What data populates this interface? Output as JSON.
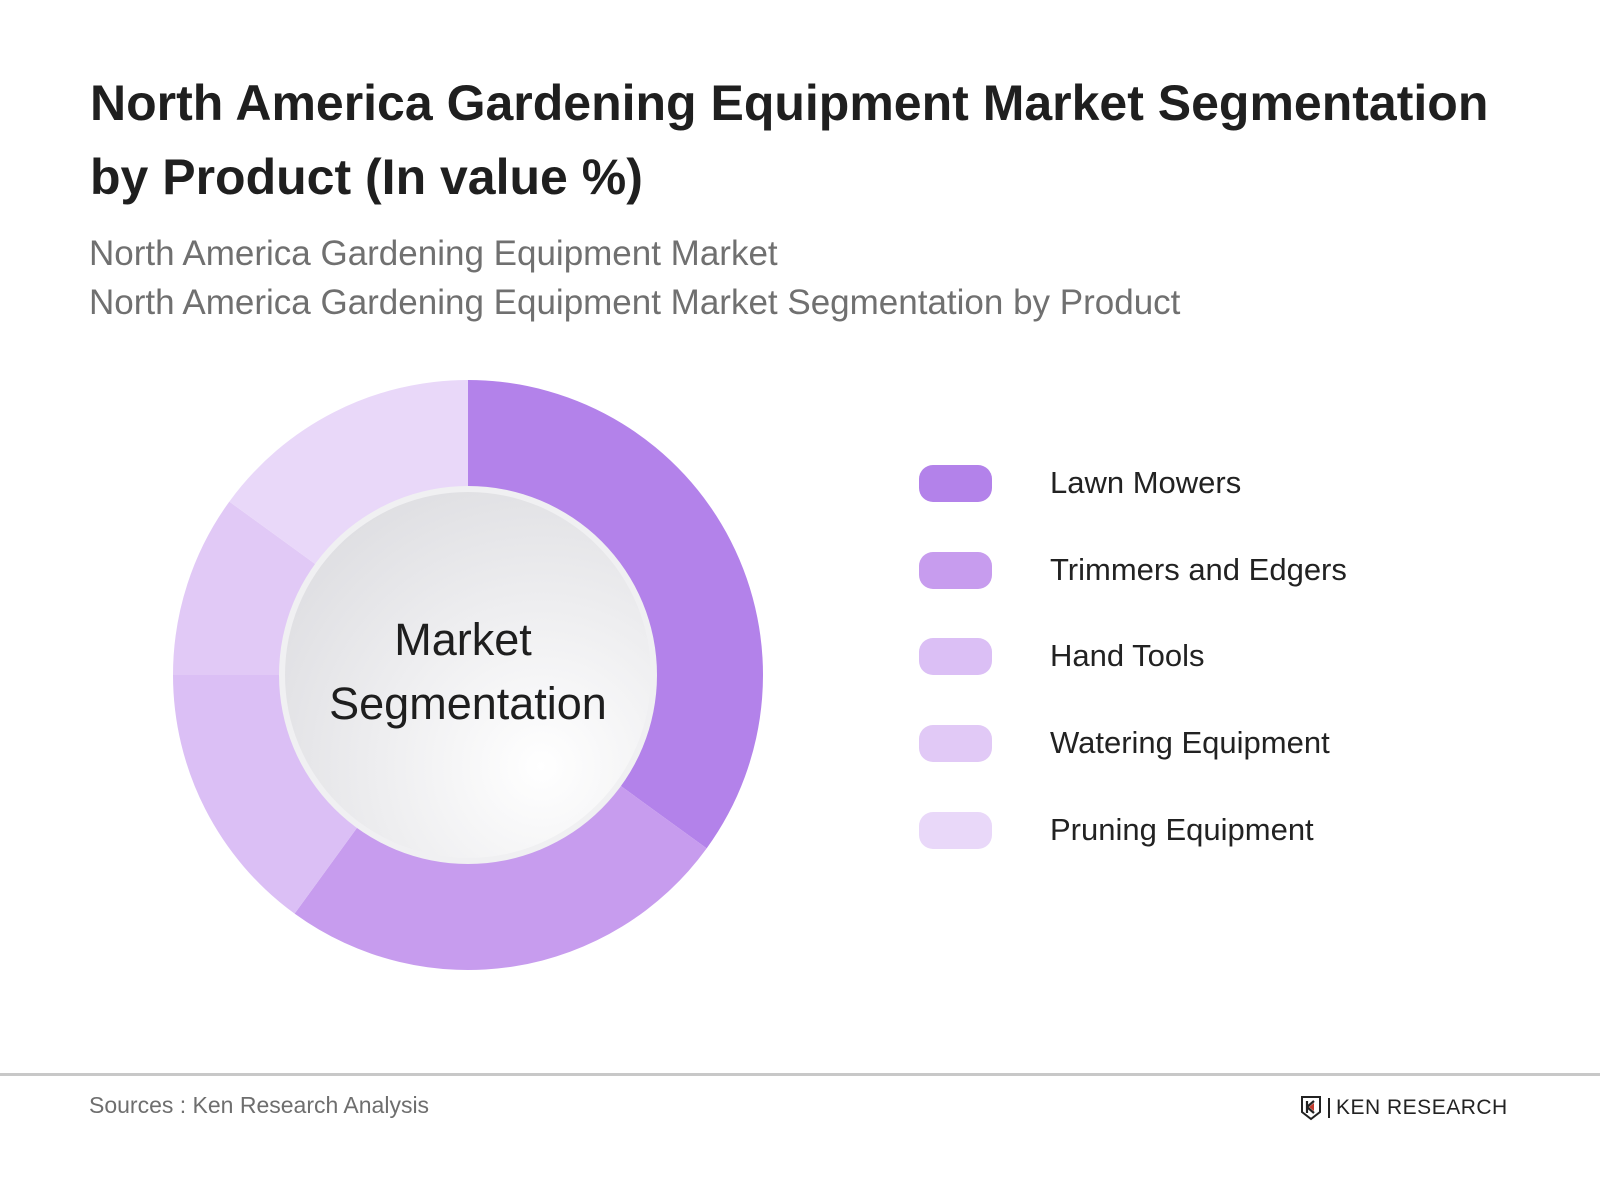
{
  "title": "North America Gardening Equipment Market Segmentation by Product (In value %)",
  "subtitle_1": "North America Gardening Equipment Market",
  "subtitle_2": "North America Gardening Equipment Market Segmentation by Product",
  "footer": {
    "source": "Sources : Ken Research Analysis",
    "logo_text": "KEN RESEARCH"
  },
  "chart_data": {
    "type": "pie",
    "variant": "donut",
    "center_label": [
      "Market",
      "Segmentation"
    ],
    "categories": [
      "Lawn Mowers",
      "Trimmers and Edgers",
      "Hand Tools",
      "Watering Equipment",
      "Pruning Equipment"
    ],
    "values": [
      35,
      25,
      15,
      10,
      15
    ],
    "colors": [
      "#b382ea",
      "#c79cee",
      "#dbbff5",
      "#e1c9f6",
      "#e9d8f9"
    ],
    "legend_position": "right"
  }
}
